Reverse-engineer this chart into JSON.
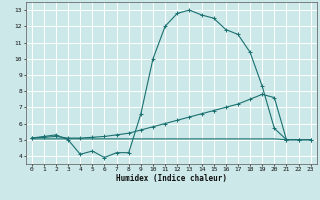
{
  "title": "",
  "xlabel": "Humidex (Indice chaleur)",
  "bg_color": "#cce8e8",
  "grid_color": "#ffffff",
  "line_color": "#1a7070",
  "xlim": [
    -0.5,
    23.5
  ],
  "ylim": [
    3.5,
    13.5
  ],
  "xticks": [
    0,
    1,
    2,
    3,
    4,
    5,
    6,
    7,
    8,
    9,
    10,
    11,
    12,
    13,
    14,
    15,
    16,
    17,
    18,
    19,
    20,
    21,
    22,
    23
  ],
  "yticks": [
    4,
    5,
    6,
    7,
    8,
    9,
    10,
    11,
    12,
    13
  ],
  "curve1_x": [
    0,
    1,
    2,
    3,
    4,
    5,
    6,
    7,
    8,
    9,
    10,
    11,
    12,
    13,
    14,
    15,
    16,
    17,
    18,
    19,
    20,
    21,
    22,
    23
  ],
  "curve1_y": [
    5.1,
    5.2,
    5.3,
    5.0,
    4.1,
    4.3,
    3.9,
    4.2,
    4.2,
    6.6,
    10.0,
    12.0,
    12.8,
    13.0,
    12.7,
    12.5,
    11.8,
    11.5,
    10.4,
    8.3,
    5.7,
    5.0,
    5.0,
    5.0
  ],
  "curve2_x": [
    0,
    1,
    2,
    3,
    4,
    5,
    6,
    7,
    8,
    9,
    10,
    11,
    12,
    13,
    14,
    15,
    16,
    17,
    18,
    19,
    20,
    21,
    22,
    23
  ],
  "curve2_y": [
    5.1,
    5.15,
    5.2,
    5.1,
    5.1,
    5.15,
    5.2,
    5.3,
    5.4,
    5.6,
    5.8,
    6.0,
    6.2,
    6.4,
    6.6,
    6.8,
    7.0,
    7.2,
    7.5,
    7.8,
    7.6,
    5.0,
    5.0,
    5.0
  ],
  "curve3_x": [
    0,
    1,
    2,
    3,
    4,
    5,
    6,
    7,
    8,
    9,
    10,
    11,
    12,
    13,
    14,
    15,
    16,
    17,
    18,
    19,
    20,
    21,
    22,
    23
  ],
  "curve3_y": [
    5.05,
    5.05,
    5.05,
    5.05,
    5.05,
    5.05,
    5.05,
    5.05,
    5.05,
    5.05,
    5.05,
    5.05,
    5.05,
    5.05,
    5.05,
    5.05,
    5.05,
    5.05,
    5.05,
    5.05,
    5.05,
    5.0,
    5.0,
    5.0
  ],
  "tick_fontsize": 4.5,
  "xlabel_fontsize": 5.5,
  "xlabel_fontweight": "bold"
}
